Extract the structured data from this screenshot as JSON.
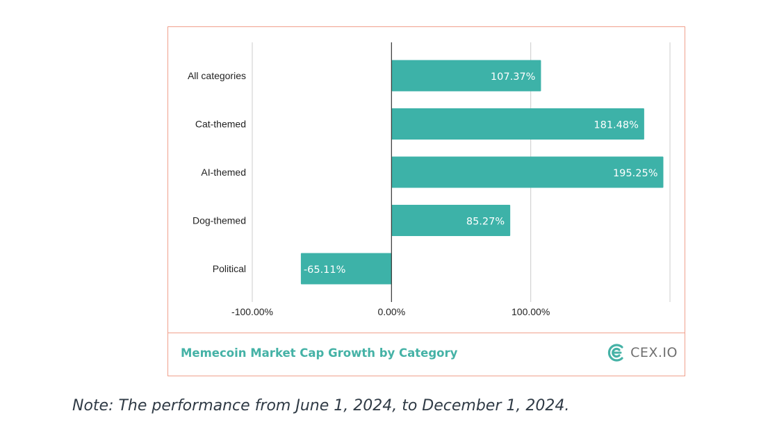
{
  "chart_data": {
    "type": "bar",
    "orientation": "horizontal",
    "categories": [
      "All categories",
      "Cat-themed",
      "AI-themed",
      "Dog-themed",
      "Political"
    ],
    "values": [
      107.37,
      181.48,
      195.25,
      85.27,
      -65.11
    ],
    "value_labels": [
      "107.37%",
      "181.48%",
      "195.25%",
      "85.27%",
      "-65.11%"
    ],
    "xlim": [
      -100,
      200
    ],
    "x_ticks": [
      -100,
      0,
      100
    ],
    "x_tick_labels": [
      "-100.00%",
      "0.00%",
      "100.00%"
    ],
    "grid": true,
    "bar_color": "#3db2a8",
    "title": "Memecoin Market Cap Growth by Category"
  },
  "brand": {
    "name": "CEX.IO",
    "icon": "cex-logo-icon",
    "color": "#45b2a6"
  },
  "note": "Note: The performance from June 1, 2024, to December 1, 2024.",
  "colors": {
    "border": "#f0a08c",
    "caption": "#45b2a6",
    "grid": "#cccccc",
    "zero_line": "#333333"
  }
}
